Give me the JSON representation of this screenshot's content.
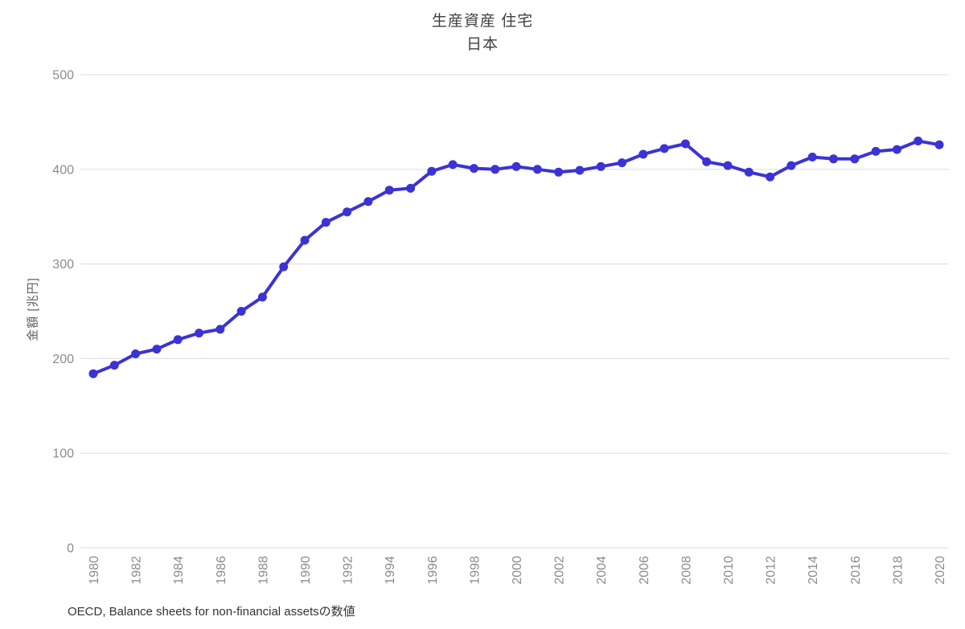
{
  "page": {
    "title": "生産資産 住宅",
    "subtitle": "日本",
    "source_note": "OECD, Balance sheets for non-financial assetsの数値"
  },
  "chart_data": {
    "type": "line",
    "title": "生産資産 住宅",
    "subtitle": "日本",
    "xlabel": "",
    "ylabel": "金額 [兆円]",
    "source": "OECD, Balance sheets for non-financial assetsの数値",
    "x": [
      1980,
      1981,
      1982,
      1983,
      1984,
      1985,
      1986,
      1987,
      1988,
      1989,
      1990,
      1991,
      1992,
      1993,
      1994,
      1995,
      1996,
      1997,
      1998,
      1999,
      2000,
      2001,
      2002,
      2003,
      2004,
      2005,
      2006,
      2007,
      2008,
      2009,
      2010,
      2011,
      2012,
      2013,
      2014,
      2015,
      2016,
      2017,
      2018,
      2019,
      2020
    ],
    "series": [
      {
        "name": "日本",
        "values": [
          184,
          193,
          205,
          210,
          220,
          227,
          231,
          250,
          265,
          297,
          325,
          344,
          355,
          366,
          378,
          380,
          398,
          405,
          401,
          400,
          403,
          400,
          397,
          399,
          403,
          407,
          416,
          422,
          427,
          408,
          404,
          397,
          392,
          404,
          413,
          411,
          411,
          419,
          421,
          430,
          426
        ]
      }
    ],
    "ylim": [
      0,
      500
    ],
    "yticks": [
      0,
      100,
      200,
      300,
      400,
      500
    ],
    "xticks": [
      1980,
      1982,
      1984,
      1986,
      1988,
      1990,
      1992,
      1994,
      1996,
      1998,
      2000,
      2002,
      2004,
      2006,
      2008,
      2010,
      2012,
      2014,
      2016,
      2018,
      2020
    ],
    "grid": "horizontal",
    "legend": "none",
    "marker": "circle",
    "line_color": "#3b33d4",
    "grid_color": "#e2e2e2",
    "tick_color": "#8c8c8c",
    "text_color": "#3f3f3f"
  }
}
